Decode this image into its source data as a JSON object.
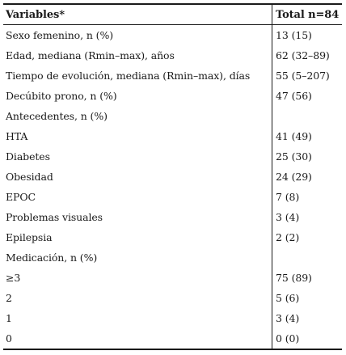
{
  "table": {
    "header": {
      "variable": "Variables*",
      "total": "Total n=84"
    },
    "rows": [
      {
        "variable": "Sexo femenino, n (%)",
        "total": "13 (15)"
      },
      {
        "variable": "Edad, mediana (Rmin–max), años",
        "total": "62 (32–89)"
      },
      {
        "variable": "Tiempo de evolución, mediana (Rmin–max), días",
        "total": "55 (5–207)"
      },
      {
        "variable": "Decúbito prono, n (%)",
        "total": "47 (56)"
      },
      {
        "variable": "Antecedentes, n (%)",
        "total": ""
      },
      {
        "variable": "HTA",
        "total": "41 (49)"
      },
      {
        "variable": "Diabetes",
        "total": "25 (30)"
      },
      {
        "variable": "Obesidad",
        "total": "24 (29)"
      },
      {
        "variable": "EPOC",
        "total": "7 (8)"
      },
      {
        "variable": "Problemas visuales",
        "total": "3 (4)"
      },
      {
        "variable": "Epilepsia",
        "total": "2 (2)"
      },
      {
        "variable": "Medicación, n (%)",
        "total": ""
      },
      {
        "variable": "≥3",
        "total": "75 (89)"
      },
      {
        "variable": "2",
        "total": "5 (6)"
      },
      {
        "variable": "1",
        "total": "3 (4)"
      },
      {
        "variable": "0",
        "total": "0 (0)"
      }
    ]
  }
}
